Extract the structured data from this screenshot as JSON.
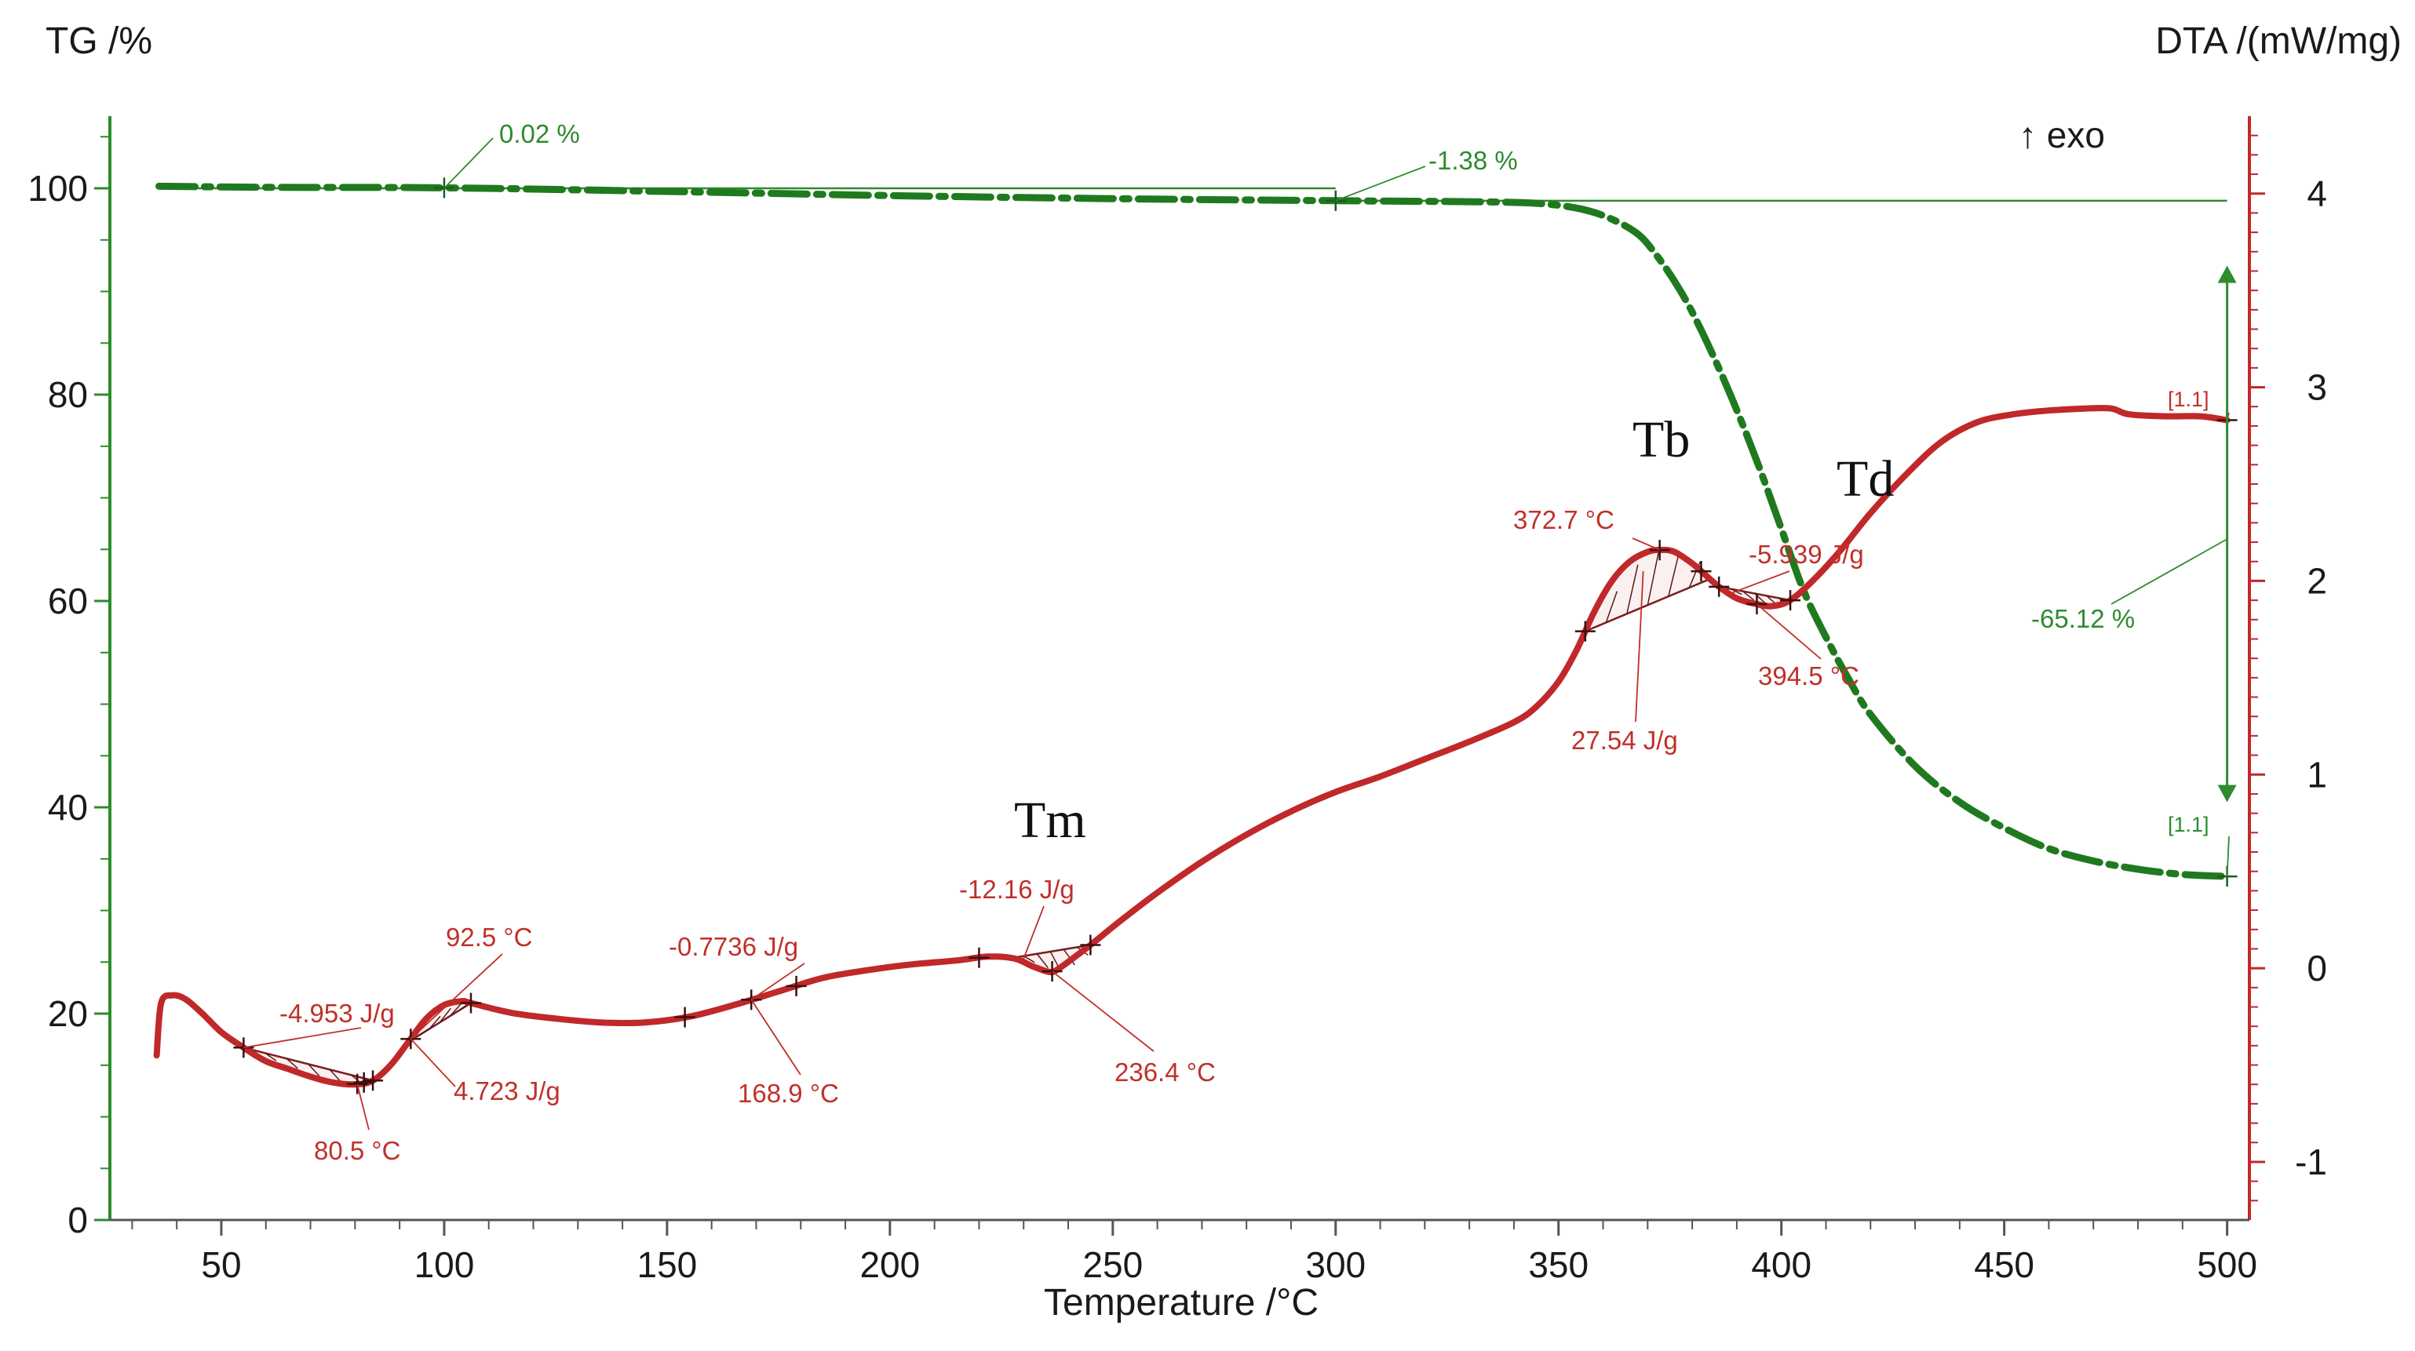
{
  "chart_data": {
    "type": "line",
    "title": "",
    "xlabel": "Temperature /°C",
    "ylabel_left": "TG /%",
    "ylabel_right": "DTA /(mW/mg)",
    "xlim": [
      25,
      505
    ],
    "ylim_left": [
      0,
      107
    ],
    "ylim_right": [
      -1.3,
      4.4
    ],
    "x_ticks": [
      "50",
      "100",
      "150",
      "200",
      "250",
      "300",
      "350",
      "400",
      "450",
      "500"
    ],
    "y_left_ticks": [
      "0",
      "20",
      "40",
      "60",
      "80",
      "100"
    ],
    "y_right_ticks": [
      "-1",
      "0",
      "1",
      "2",
      "3",
      "4"
    ],
    "exo_label": "↑ exo",
    "series": [
      {
        "name": "TG",
        "axis": "left",
        "color": "#1f7a1f",
        "style": "dash-dot",
        "points": [
          [
            36,
            100.2
          ],
          [
            60,
            100.1
          ],
          [
            100,
            100.05
          ],
          [
            150,
            99.7
          ],
          [
            200,
            99.3
          ],
          [
            250,
            99.0
          ],
          [
            300,
            98.8
          ],
          [
            330,
            98.7
          ],
          [
            345,
            98.55
          ],
          [
            355,
            98.0
          ],
          [
            362,
            97.0
          ],
          [
            368,
            95.5
          ],
          [
            372,
            93.5
          ],
          [
            376,
            91.0
          ],
          [
            380,
            88.0
          ],
          [
            385,
            83.5
          ],
          [
            390,
            78.5
          ],
          [
            395,
            73.0
          ],
          [
            400,
            67.0
          ],
          [
            405,
            61.0
          ],
          [
            410,
            56.5
          ],
          [
            415,
            52.5
          ],
          [
            420,
            49.0
          ],
          [
            430,
            44.0
          ],
          [
            440,
            40.5
          ],
          [
            450,
            38.0
          ],
          [
            460,
            36.0
          ],
          [
            470,
            34.8
          ],
          [
            480,
            34.0
          ],
          [
            490,
            33.5
          ],
          [
            500,
            33.3
          ]
        ]
      },
      {
        "name": "DTA",
        "axis": "right",
        "color": "#c0282a",
        "style": "solid",
        "points": [
          [
            35.5,
            -0.45
          ],
          [
            36.5,
            -0.18
          ],
          [
            39,
            -0.14
          ],
          [
            42,
            -0.16
          ],
          [
            46,
            -0.24
          ],
          [
            50,
            -0.33
          ],
          [
            55,
            -0.41
          ],
          [
            60,
            -0.48
          ],
          [
            65,
            -0.52
          ],
          [
            70,
            -0.56
          ],
          [
            75,
            -0.59
          ],
          [
            80,
            -0.6
          ],
          [
            84,
            -0.58
          ],
          [
            88,
            -0.5
          ],
          [
            92,
            -0.38
          ],
          [
            96,
            -0.26
          ],
          [
            100,
            -0.19
          ],
          [
            104,
            -0.17
          ],
          [
            106,
            -0.18
          ],
          [
            115,
            -0.23
          ],
          [
            125,
            -0.26
          ],
          [
            135,
            -0.28
          ],
          [
            145,
            -0.28
          ],
          [
            155,
            -0.25
          ],
          [
            165,
            -0.19
          ],
          [
            175,
            -0.12
          ],
          [
            185,
            -0.05
          ],
          [
            195,
            -0.01
          ],
          [
            205,
            0.02
          ],
          [
            215,
            0.04
          ],
          [
            222,
            0.06
          ],
          [
            228,
            0.05
          ],
          [
            232,
            0.01
          ],
          [
            236,
            -0.02
          ],
          [
            238,
            0.0
          ],
          [
            241,
            0.05
          ],
          [
            245,
            0.12
          ],
          [
            252,
            0.25
          ],
          [
            260,
            0.39
          ],
          [
            270,
            0.55
          ],
          [
            280,
            0.69
          ],
          [
            290,
            0.81
          ],
          [
            300,
            0.91
          ],
          [
            310,
            0.99
          ],
          [
            320,
            1.08
          ],
          [
            330,
            1.17
          ],
          [
            340,
            1.27
          ],
          [
            345,
            1.35
          ],
          [
            350,
            1.48
          ],
          [
            354,
            1.64
          ],
          [
            358,
            1.84
          ],
          [
            362,
            2.0
          ],
          [
            366,
            2.1
          ],
          [
            370,
            2.15
          ],
          [
            373,
            2.16
          ],
          [
            376,
            2.15
          ],
          [
            380,
            2.09
          ],
          [
            383,
            2.03
          ],
          [
            386,
            1.97
          ],
          [
            390,
            1.91
          ],
          [
            394.5,
            1.88
          ],
          [
            398,
            1.87
          ],
          [
            402,
            1.9
          ],
          [
            407,
            2.0
          ],
          [
            413,
            2.15
          ],
          [
            420,
            2.35
          ],
          [
            428,
            2.55
          ],
          [
            436,
            2.72
          ],
          [
            444,
            2.82
          ],
          [
            452,
            2.86
          ],
          [
            460,
            2.88
          ],
          [
            468,
            2.89
          ],
          [
            474,
            2.89
          ],
          [
            478,
            2.86
          ],
          [
            486,
            2.85
          ],
          [
            494,
            2.85
          ],
          [
            500,
            2.83
          ]
        ]
      }
    ],
    "annotations": {
      "tg_step_1": "0.02 %",
      "tg_step_2": "-1.38 %",
      "tg_mass_change": "-65.12 %",
      "marker_dta_end": "[1.1]",
      "marker_tg_end": "[1.1]",
      "peak_80": "80.5 °C",
      "enthalpy_1": "-4.953 J/g",
      "peak_92": "92.5 °C",
      "enthalpy_2": "4.723 J/g",
      "enthalpy_3": "-0.7736 J/g",
      "peak_168": "168.9 °C",
      "enthalpy_4": "-12.16 J/g",
      "peak_236": "236.4 °C",
      "peak_372": "372.7 °C",
      "enthalpy_5": "27.54 J/g",
      "enthalpy_6": "-5.939 J/g",
      "peak_394": "394.5 °C"
    },
    "regions": {
      "tm": "Tm",
      "tb": "Tb",
      "td": "Td"
    }
  }
}
